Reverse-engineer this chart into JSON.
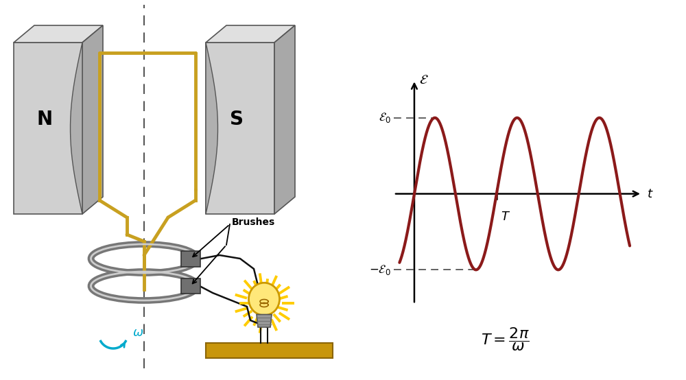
{
  "bg_color": "#ffffff",
  "sine_color": "#8b1a1a",
  "sine_linewidth": 3.0,
  "E0_label": "$\\mathcal{E}_0$",
  "neg_E0_label": "$-\\mathcal{E}_0$",
  "E_label": "$\\mathcal{E}$",
  "t_label": "$t$",
  "T_label": "$T$",
  "formula": "$T = \\dfrac{2\\pi}{\\omega}$",
  "coil_color": "#c8a020",
  "ring_outer_color": "#888888",
  "ring_inner_color": "#cccccc",
  "brush_color": "#666666",
  "omega_color": "#00aacc",
  "magnet_face_color": "#d0d0d0",
  "magnet_top_color": "#e8e8e8",
  "magnet_side_color": "#909090",
  "magnet_inner_color": "#b8b8b8",
  "platform_color": "#c8960c",
  "bulb_color": "#ffe87a",
  "glow_color": "#ffcc00",
  "wire_color": "#111111"
}
